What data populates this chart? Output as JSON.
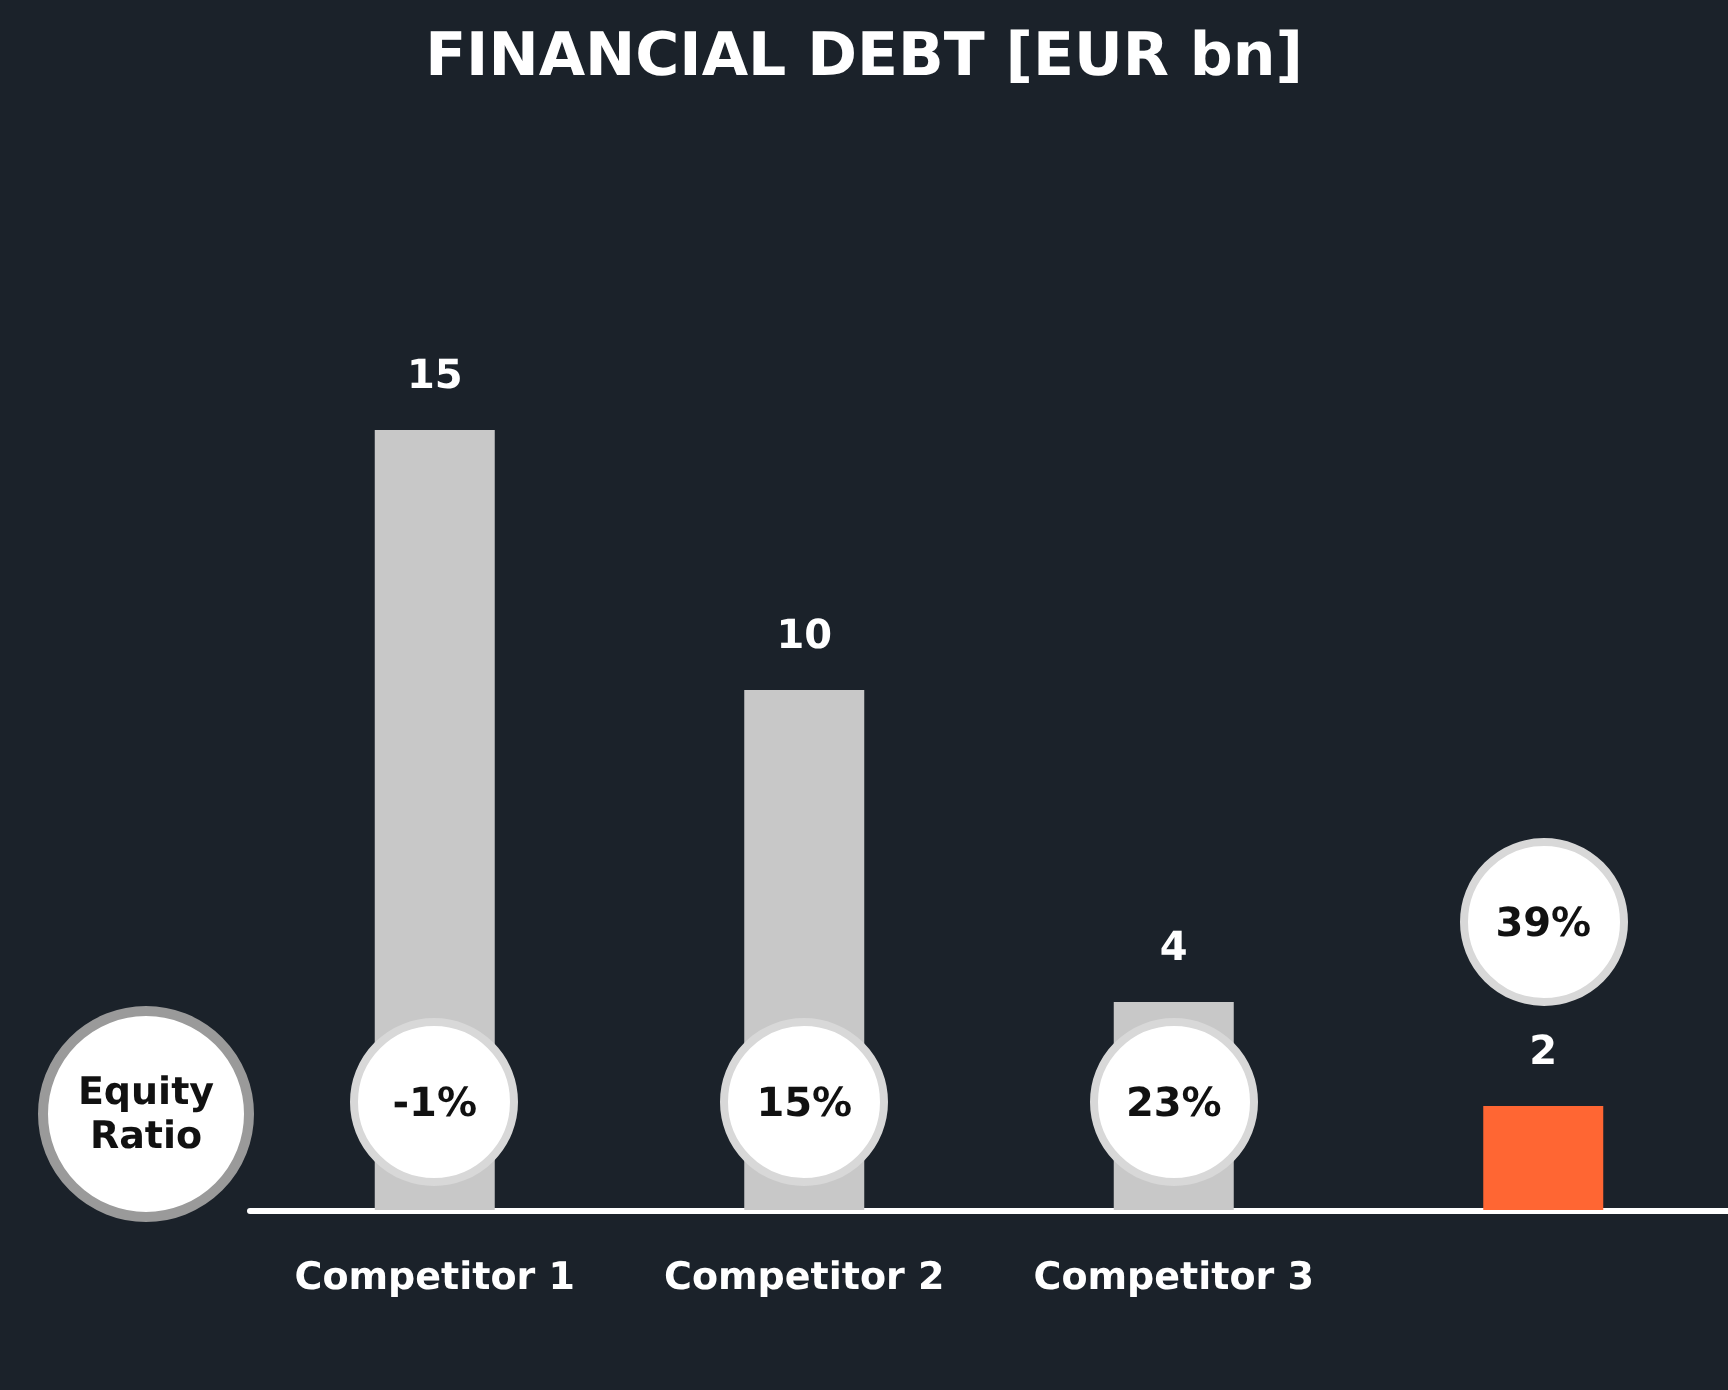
{
  "chart_data": {
    "type": "bar",
    "title": "FINANCIAL DEBT [EUR bn]",
    "categories": [
      "Competitor 1",
      "Competitor 2",
      "Competitor 3",
      null
    ],
    "values": [
      15,
      10,
      4,
      2
    ],
    "colors": [
      "#c8c8c8",
      "#c8c8c8",
      "#c8c8c8",
      "#ff6633"
    ],
    "data_labels": true,
    "annotations": [
      "Equity Ratio",
      "-1%",
      "15%",
      "23%",
      "39%"
    ]
  }
}
